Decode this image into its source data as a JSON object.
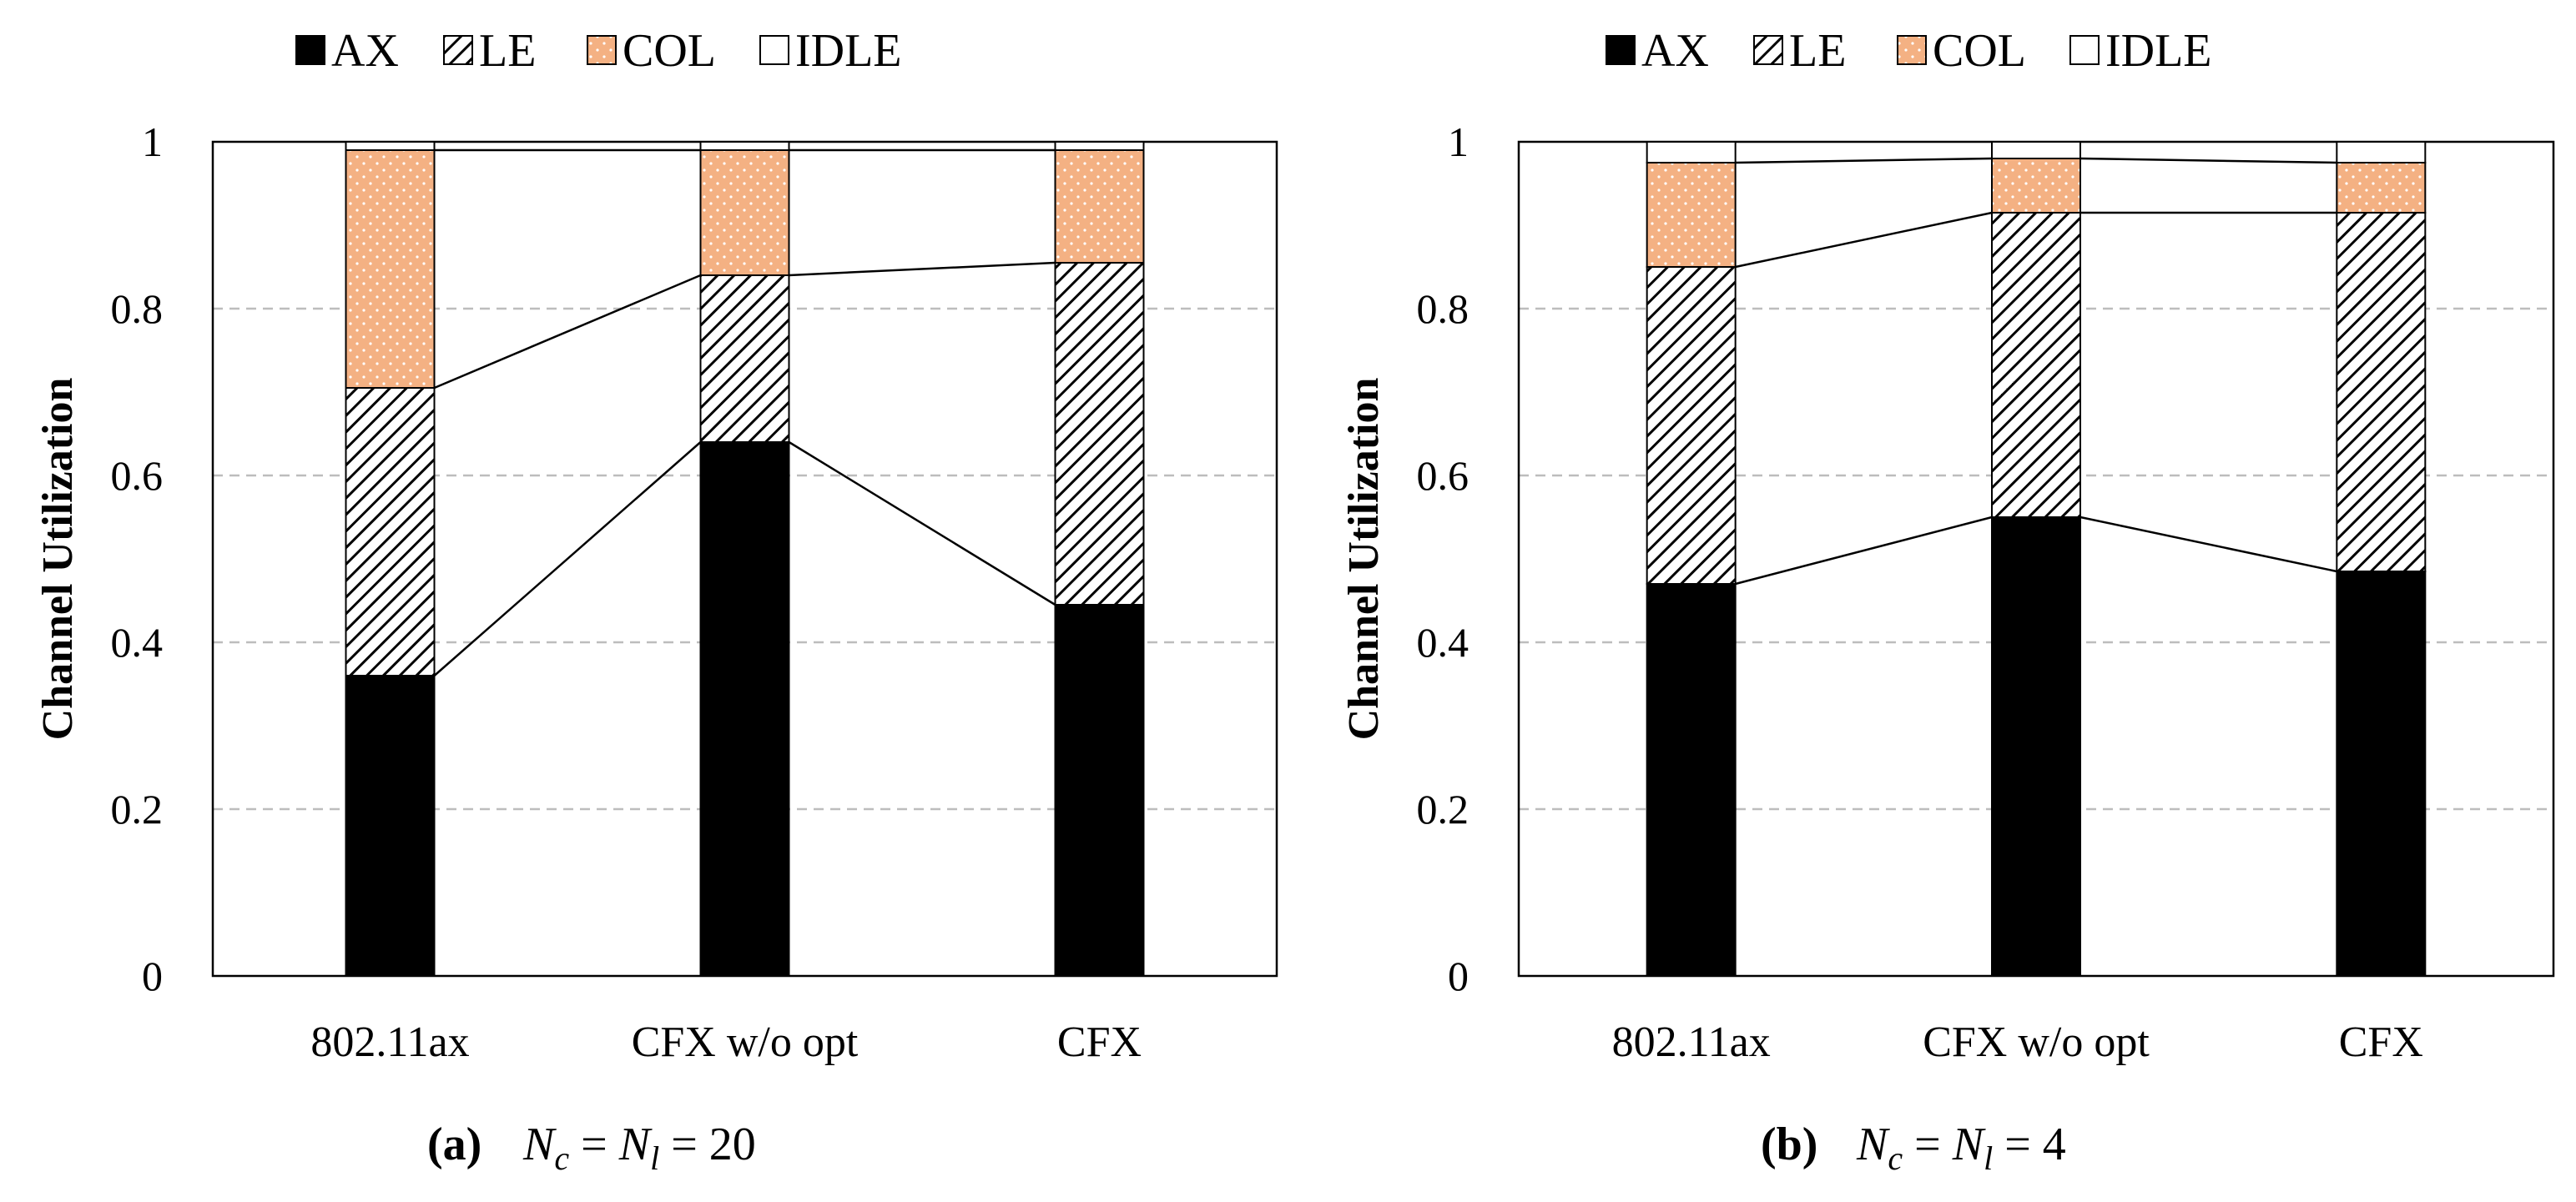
{
  "chart_data": [
    {
      "type": "bar",
      "stacked": true,
      "panel_label": "(a)",
      "caption_math": "N_c = N_l = 20",
      "caption_math_parts": {
        "n1": "N",
        "s1": "c",
        "n2": "N",
        "s2": "l",
        "eq": "=",
        "value": "20"
      },
      "categories": [
        "802.11ax",
        "CFX w/o opt",
        "CFX"
      ],
      "series": [
        {
          "name": "AX",
          "values": [
            0.36,
            0.64,
            0.445
          ]
        },
        {
          "name": "LE",
          "values": [
            0.345,
            0.2,
            0.41
          ]
        },
        {
          "name": "COL",
          "values": [
            0.285,
            0.15,
            0.135
          ]
        },
        {
          "name": "IDLE",
          "values": [
            0.01,
            0.01,
            0.01
          ]
        }
      ],
      "ylabel": "Channel Utilization",
      "ylim": [
        0,
        1
      ],
      "yticks": [
        0,
        0.2,
        0.4,
        0.6,
        0.8,
        1
      ],
      "ytick_labels": [
        "0",
        "0.2",
        "0.4",
        "0.6",
        "0.8",
        "1"
      ],
      "grid": true,
      "connector_lines": true,
      "legend_position": "top"
    },
    {
      "type": "bar",
      "stacked": true,
      "panel_label": "(b)",
      "caption_math": "N_c = N_l = 4",
      "caption_math_parts": {
        "n1": "N",
        "s1": "c",
        "n2": "N",
        "s2": "l",
        "eq": "=",
        "value": "4"
      },
      "categories": [
        "802.11ax",
        "CFX w/o opt",
        "CFX"
      ],
      "series": [
        {
          "name": "AX",
          "values": [
            0.47,
            0.55,
            0.485
          ]
        },
        {
          "name": "LE",
          "values": [
            0.38,
            0.365,
            0.43
          ]
        },
        {
          "name": "COL",
          "values": [
            0.125,
            0.065,
            0.06
          ]
        },
        {
          "name": "IDLE",
          "values": [
            0.025,
            0.02,
            0.025
          ]
        }
      ],
      "ylabel": "Channel Utilization",
      "ylim": [
        0,
        1
      ],
      "yticks": [
        0,
        0.2,
        0.4,
        0.6,
        0.8,
        1
      ],
      "ytick_labels": [
        "0",
        "0.2",
        "0.4",
        "0.6",
        "0.8",
        "1"
      ],
      "grid": true,
      "connector_lines": true,
      "legend_position": "top"
    }
  ],
  "legend": [
    "AX",
    "LE",
    "COL",
    "IDLE"
  ],
  "colors": {
    "AX": "#000000",
    "LE": "#ffffff",
    "COL": "#f4b183",
    "IDLE": "#ffffff",
    "grid": "#bdbdbd",
    "axis": "#000000"
  }
}
